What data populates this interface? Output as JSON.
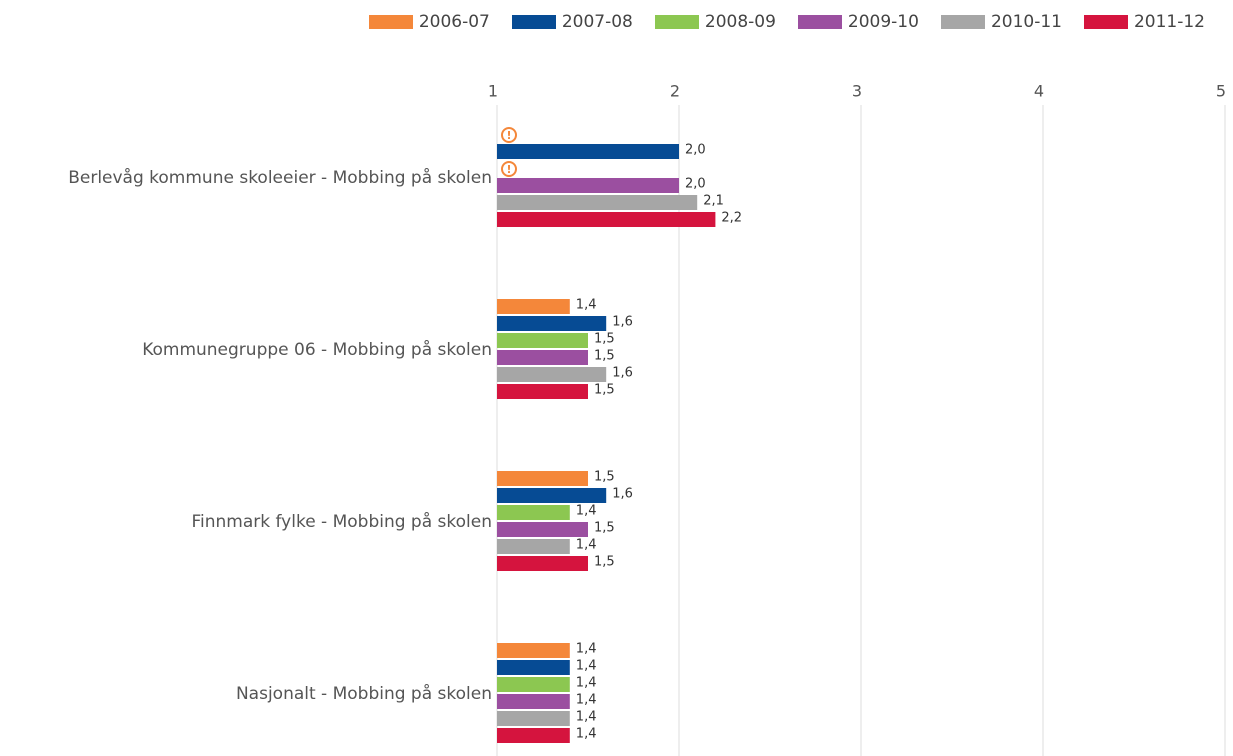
{
  "chart_data": {
    "type": "bar",
    "orientation": "horizontal",
    "categories": [
      "Berlevåg kommune skoleeier - Mobbing på skolen",
      "Kommunegruppe 06 - Mobbing på skolen",
      "Finnmark fylke - Mobbing på skolen",
      "Nasjonalt - Mobbing på skolen"
    ],
    "series": [
      {
        "name": "2006-07",
        "color": "#f4873a",
        "values": [
          null,
          1.4,
          1.5,
          1.4
        ],
        "value_labels": [
          null,
          "1,4",
          "1,5",
          "1,4"
        ]
      },
      {
        "name": "2007-08",
        "color": "#064b94",
        "values": [
          2.0,
          1.6,
          1.6,
          1.4
        ],
        "value_labels": [
          "2,0",
          "1,6",
          "1,6",
          "1,4"
        ]
      },
      {
        "name": "2008-09",
        "color": "#8cc751",
        "values": [
          null,
          1.5,
          1.4,
          1.4
        ],
        "value_labels": [
          null,
          "1,5",
          "1,4",
          "1,4"
        ]
      },
      {
        "name": "2009-10",
        "color": "#9b4fa0",
        "values": [
          2.0,
          1.5,
          1.5,
          1.4
        ],
        "value_labels": [
          "2,0",
          "1,5",
          "1,5",
          "1,4"
        ]
      },
      {
        "name": "2010-11",
        "color": "#a6a6a6",
        "values": [
          2.1,
          1.6,
          1.4,
          1.4
        ],
        "value_labels": [
          "2,1",
          "1,6",
          "1,4",
          "1,4"
        ]
      },
      {
        "name": "2011-12",
        "color": "#d5143e",
        "values": [
          2.2,
          1.5,
          1.5,
          1.4
        ],
        "value_labels": [
          "2,2",
          "1,5",
          "1,5",
          "1,4"
        ]
      }
    ],
    "xlim": [
      1,
      5
    ],
    "xticks": [
      1,
      2,
      3,
      4,
      5
    ],
    "grid": true,
    "legend": "top"
  }
}
